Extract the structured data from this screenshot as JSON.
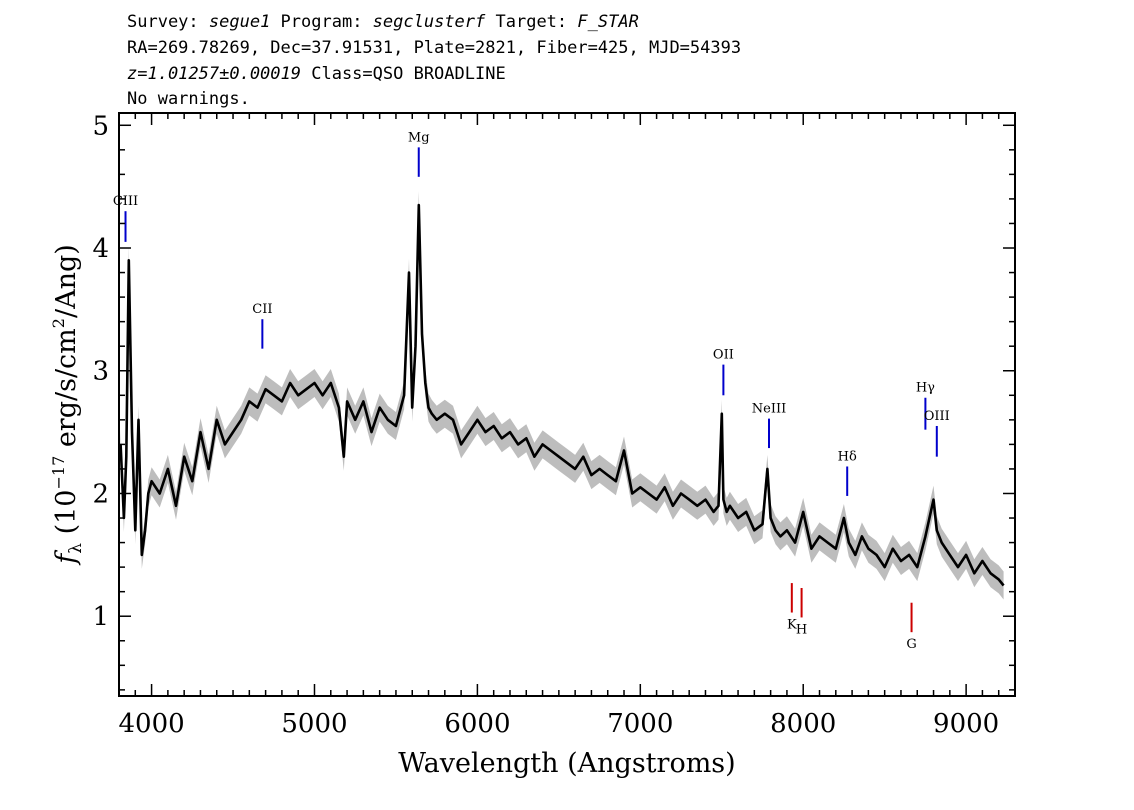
{
  "header": {
    "line1": [
      {
        "text": "Survey: ",
        "italic": false
      },
      {
        "text": "segue1",
        "italic": true
      },
      {
        "text": " Program: ",
        "italic": false
      },
      {
        "text": "segclusterf",
        "italic": true
      },
      {
        "text": " Target: ",
        "italic": false
      },
      {
        "text": "F_STAR",
        "italic": true
      }
    ],
    "line2": [
      {
        "text": "RA=269.78269, Dec=37.91531, Plate=2821, Fiber=425, MJD=54393",
        "italic": false
      }
    ],
    "line3": [
      {
        "text": "z=1.01257±0.00019",
        "italic": true
      },
      {
        "text": " Class=QSO BROADLINE",
        "italic": false
      }
    ],
    "line4": [
      {
        "text": "No warnings.",
        "italic": false
      }
    ]
  },
  "chart_data": {
    "type": "line",
    "xlabel": "Wavelength (Angstroms)",
    "ylabel_parts": {
      "f": "f",
      "sub": "λ",
      "pre": " (10",
      "exp1": "−17",
      "mid": " erg/s/cm",
      "exp2": "2",
      "post": "/Ang)"
    },
    "xlim": [
      3800,
      9300
    ],
    "ylim": [
      0.35,
      5.1
    ],
    "x_ticks": [
      4000,
      5000,
      6000,
      7000,
      8000,
      9000
    ],
    "y_ticks": [
      1,
      2,
      3,
      4,
      5
    ],
    "colors": {
      "flux": "#000000",
      "error_band": "#bdbdbd",
      "emission": "#0000cc",
      "absorption": "#cc0000",
      "axis": "#000000"
    },
    "series": [
      {
        "role": "flux",
        "x": [
          3810,
          3830,
          3845,
          3860,
          3880,
          3900,
          3920,
          3940,
          3960,
          3980,
          4000,
          4050,
          4100,
          4150,
          4200,
          4250,
          4300,
          4350,
          4400,
          4450,
          4500,
          4550,
          4600,
          4650,
          4700,
          4750,
          4800,
          4850,
          4900,
          4950,
          5000,
          5050,
          5100,
          5150,
          5180,
          5200,
          5250,
          5300,
          5350,
          5400,
          5450,
          5500,
          5550,
          5580,
          5600,
          5620,
          5640,
          5660,
          5680,
          5700,
          5720,
          5750,
          5800,
          5850,
          5900,
          5950,
          6000,
          6050,
          6100,
          6150,
          6200,
          6250,
          6300,
          6350,
          6400,
          6450,
          6500,
          6550,
          6600,
          6650,
          6700,
          6750,
          6800,
          6850,
          6900,
          6950,
          7000,
          7050,
          7100,
          7150,
          7200,
          7250,
          7300,
          7350,
          7400,
          7450,
          7480,
          7500,
          7510,
          7530,
          7550,
          7600,
          7650,
          7700,
          7750,
          7780,
          7800,
          7830,
          7860,
          7900,
          7950,
          8000,
          8050,
          8100,
          8150,
          8200,
          8250,
          8280,
          8320,
          8360,
          8400,
          8450,
          8500,
          8550,
          8600,
          8650,
          8700,
          8750,
          8800,
          8820,
          8850,
          8900,
          8950,
          9000,
          9050,
          9100,
          9150,
          9200,
          9230
        ],
        "y": [
          2.4,
          1.8,
          2.3,
          3.9,
          2.5,
          1.7,
          2.6,
          1.5,
          1.7,
          2.0,
          2.1,
          2.0,
          2.2,
          1.9,
          2.3,
          2.1,
          2.5,
          2.2,
          2.6,
          2.4,
          2.5,
          2.6,
          2.75,
          2.7,
          2.85,
          2.8,
          2.75,
          2.9,
          2.8,
          2.85,
          2.9,
          2.8,
          2.9,
          2.7,
          2.3,
          2.75,
          2.6,
          2.75,
          2.5,
          2.7,
          2.6,
          2.55,
          2.8,
          3.8,
          2.7,
          3.2,
          4.35,
          3.3,
          2.9,
          2.7,
          2.65,
          2.6,
          2.65,
          2.6,
          2.4,
          2.5,
          2.6,
          2.5,
          2.55,
          2.45,
          2.5,
          2.4,
          2.45,
          2.3,
          2.4,
          2.35,
          2.3,
          2.25,
          2.2,
          2.3,
          2.15,
          2.2,
          2.15,
          2.1,
          2.35,
          2.0,
          2.05,
          2.0,
          1.95,
          2.05,
          1.9,
          2.0,
          1.95,
          1.9,
          1.95,
          1.85,
          1.9,
          2.65,
          1.95,
          1.85,
          1.9,
          1.8,
          1.85,
          1.7,
          1.75,
          2.2,
          1.8,
          1.7,
          1.65,
          1.7,
          1.6,
          1.85,
          1.55,
          1.65,
          1.6,
          1.55,
          1.8,
          1.6,
          1.5,
          1.65,
          1.55,
          1.5,
          1.4,
          1.55,
          1.45,
          1.5,
          1.4,
          1.65,
          1.95,
          1.7,
          1.6,
          1.5,
          1.4,
          1.5,
          1.35,
          1.45,
          1.35,
          1.3,
          1.25
        ]
      }
    ],
    "emission_lines": [
      {
        "label": "CIII",
        "x": 3840,
        "y_top": 4.3,
        "y_bottom": 4.05
      },
      {
        "label": "CII",
        "x": 4680,
        "y_top": 3.42,
        "y_bottom": 3.18
      },
      {
        "label": "Mg",
        "x": 5640,
        "y_top": 4.82,
        "y_bottom": 4.58
      },
      {
        "label": "OII",
        "x": 7510,
        "y_top": 3.05,
        "y_bottom": 2.8
      },
      {
        "label": "NeIII",
        "x": 7790,
        "y_top": 2.61,
        "y_bottom": 2.37
      },
      {
        "label": "Hδ",
        "x": 8270,
        "y_top": 2.22,
        "y_bottom": 1.98
      },
      {
        "label": "Hγ",
        "x": 8750,
        "y_top": 2.78,
        "y_bottom": 2.52
      },
      {
        "label": "OIII",
        "x": 8820,
        "y_top": 2.55,
        "y_bottom": 2.3
      }
    ],
    "absorption_lines": [
      {
        "label": "K",
        "x": 7930,
        "y_top": 1.27,
        "y_bottom": 1.03
      },
      {
        "label": "H",
        "x": 7990,
        "y_top": 1.23,
        "y_bottom": 0.99
      },
      {
        "label": "G",
        "x": 8665,
        "y_top": 1.11,
        "y_bottom": 0.87
      }
    ]
  }
}
